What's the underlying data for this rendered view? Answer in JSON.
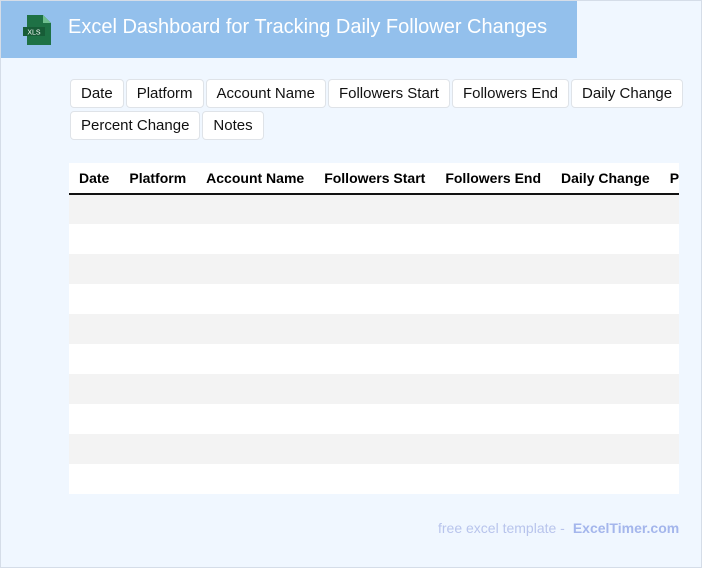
{
  "header": {
    "title": "Excel Dashboard for Tracking Daily Follower Changes",
    "logo_text": "XLS",
    "logo_color": "#1e7145"
  },
  "chips": [
    "Date",
    "Platform",
    "Account Name",
    "Followers Start",
    "Followers End",
    "Daily Change",
    "Percent Change",
    "Notes"
  ],
  "table": {
    "columns": [
      "Date",
      "Platform",
      "Account Name",
      "Followers Start",
      "Followers End",
      "Daily Change",
      "Percent Change"
    ],
    "row_count": 10
  },
  "footer": {
    "text": "free excel template -",
    "link": "ExcelTimer.com"
  }
}
